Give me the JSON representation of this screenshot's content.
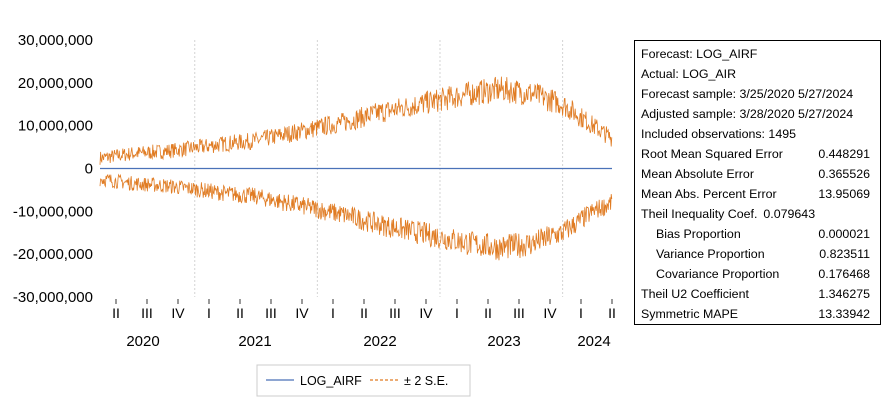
{
  "chart_data": {
    "type": "line",
    "y_ticks": [
      "30,000,000",
      "20,000,000",
      "10,000,000",
      "0",
      "-10,000,000",
      "-20,000,000",
      "-30,000,000"
    ],
    "ylim": [
      -30000000,
      30000000
    ],
    "quarter_labels": [
      "II",
      "III",
      "IV",
      "I",
      "II",
      "III",
      "IV",
      "I",
      "II",
      "III",
      "IV",
      "I",
      "II",
      "III",
      "IV",
      "I",
      "II"
    ],
    "year_labels": [
      "2020",
      "2021",
      "2022",
      "2023",
      "2024"
    ],
    "x_range": [
      "3/25/2020",
      "5/27/2024"
    ],
    "grid": "vertical lines at year boundaries",
    "legend_position": "bottom-center",
    "series": [
      {
        "name": "LOG_AIRF",
        "color": "#4a72b8",
        "style": "solid",
        "x": [
          "3/25/2020",
          "5/27/2024"
        ],
        "values": [
          0,
          0
        ]
      },
      {
        "name": "± 2 S.E.",
        "color": "#e07b22",
        "style": "dashed",
        "x": [
          "4/1/2020",
          "7/1/2020",
          "10/1/2020",
          "1/1/2021",
          "4/1/2021",
          "7/1/2021",
          "10/1/2021",
          "1/1/2022",
          "4/1/2022",
          "7/1/2022",
          "10/1/2022",
          "1/1/2023",
          "4/1/2023",
          "7/1/2023",
          "10/1/2023",
          "1/1/2024",
          "4/1/2024",
          "5/27/2024"
        ],
        "upper": [
          2500000,
          3500000,
          4000000,
          4800000,
          5800000,
          6500000,
          8000000,
          9500000,
          11000000,
          13000000,
          14500000,
          16000000,
          17500000,
          18500000,
          17500000,
          15000000,
          10000000,
          7000000
        ],
        "lower": [
          -2500000,
          -3500000,
          -4000000,
          -4800000,
          -5800000,
          -6500000,
          -8000000,
          -9500000,
          -11000000,
          -13000000,
          -14500000,
          -16000000,
          -17500000,
          -18500000,
          -17500000,
          -15000000,
          -10000000,
          -8000000
        ]
      }
    ]
  },
  "stats": {
    "forecast": "Forecast: LOG_AIRF",
    "actual": "Actual: LOG_AIR",
    "forecast_sample": "Forecast sample: 3/25/2020 5/27/2024",
    "adjusted_sample": "Adjusted sample: 3/28/2020 5/27/2024",
    "included_obs": "Included observations: 1495",
    "rmse_label": "Root Mean Squared Error",
    "rmse": "0.448291",
    "mae_label": "Mean Absolute Error",
    "mae": "0.365526",
    "mape_label": "Mean Abs. Percent Error",
    "mape": "13.95069",
    "theil_label": "Theil Inequality Coef.",
    "theil": "0.079643",
    "bias_label": "Bias Proportion",
    "bias": "0.000021",
    "var_label": "Variance Proportion",
    "var": "0.823511",
    "cov_label": "Covariance Proportion",
    "cov": "0.176468",
    "u2_label": "Theil U2 Coefficient",
    "u2": "1.346275",
    "smape_label": "Symmetric MAPE",
    "smape": "13.33942"
  }
}
